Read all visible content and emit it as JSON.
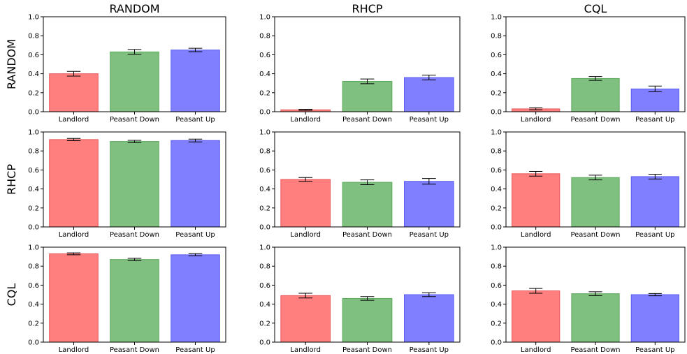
{
  "chart_data": {
    "type": "bar",
    "col_titles": [
      "RANDOM",
      "RHCP",
      "CQL"
    ],
    "row_labels": [
      "RANDOM",
      "RHCP",
      "CQL"
    ],
    "categories": [
      "Landlord",
      "Peasant Down",
      "Peasant Up"
    ],
    "colors": [
      "#ff7f7f",
      "#7fbf7f",
      "#7f7fff"
    ],
    "edge_colors": [
      "#e8575a",
      "#5aaa5a",
      "#5c5cf0"
    ],
    "ylim": [
      0,
      1.0
    ],
    "yticks": [
      "0.0",
      "0.2",
      "0.4",
      "0.6",
      "0.8",
      "1.0"
    ],
    "error_bars": true,
    "grid": false,
    "panels": [
      {
        "row": 0,
        "col": 0,
        "values": [
          0.4,
          0.63,
          0.65
        ],
        "errors": [
          0.025,
          0.025,
          0.018
        ]
      },
      {
        "row": 0,
        "col": 1,
        "values": [
          0.02,
          0.32,
          0.36
        ],
        "errors": [
          0.005,
          0.025,
          0.025
        ]
      },
      {
        "row": 0,
        "col": 2,
        "values": [
          0.03,
          0.35,
          0.24
        ],
        "errors": [
          0.01,
          0.02,
          0.03
        ]
      },
      {
        "row": 1,
        "col": 0,
        "values": [
          0.92,
          0.9,
          0.91
        ],
        "errors": [
          0.012,
          0.012,
          0.015
        ]
      },
      {
        "row": 1,
        "col": 1,
        "values": [
          0.5,
          0.47,
          0.48
        ],
        "errors": [
          0.02,
          0.025,
          0.03
        ]
      },
      {
        "row": 1,
        "col": 2,
        "values": [
          0.56,
          0.52,
          0.53
        ],
        "errors": [
          0.025,
          0.025,
          0.025
        ]
      },
      {
        "row": 2,
        "col": 0,
        "values": [
          0.93,
          0.87,
          0.92
        ],
        "errors": [
          0.01,
          0.012,
          0.012
        ]
      },
      {
        "row": 2,
        "col": 1,
        "values": [
          0.49,
          0.46,
          0.5
        ],
        "errors": [
          0.025,
          0.02,
          0.02
        ]
      },
      {
        "row": 2,
        "col": 2,
        "values": [
          0.54,
          0.51,
          0.5
        ],
        "errors": [
          0.025,
          0.02,
          0.012
        ]
      }
    ]
  }
}
